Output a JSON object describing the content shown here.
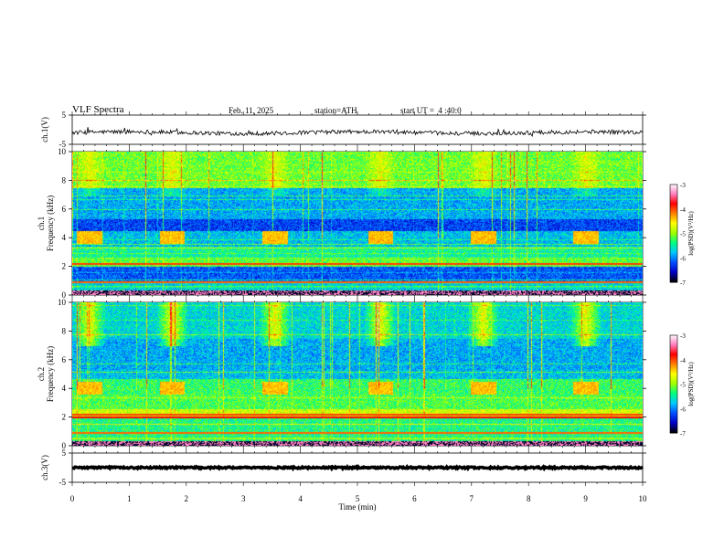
{
  "header": {
    "title": "VLF Spectra",
    "date": "Feb. 11, 2025",
    "station": "station=ATH",
    "start": "start UT =  4 :40:0"
  },
  "colors": {
    "waveform": "#000000",
    "spectrogram_colormap": [
      "#000000",
      "#0000c8",
      "#0050ff",
      "#00c8ff",
      "#00ff80",
      "#a0ff00",
      "#ffff00",
      "#ff8000",
      "#ff0000",
      "#ff80c0",
      "#ffffff"
    ]
  },
  "chart_data": [
    {
      "type": "line",
      "name": "ch1-waveform",
      "ylabel": "ch.1(V)",
      "ylim": [
        -5,
        5
      ],
      "yticks": [
        "5",
        "-5"
      ],
      "xlim": [
        0,
        10
      ],
      "baseline": -1
    },
    {
      "type": "heatmap",
      "name": "ch1-spectrogram",
      "ylabel": "ch.1\nFrequency (kHz)",
      "ylabel_line1": "ch.1",
      "ylabel_line2": "Frequency (kHz)",
      "ylim": [
        0,
        10
      ],
      "yticks": [
        "0",
        "2",
        "4",
        "6",
        "8",
        "10"
      ],
      "xlim": [
        0,
        10
      ],
      "colorbar": {
        "label": "log(PSD)(V²/Hz)",
        "range": [
          -7,
          -3
        ],
        "ticks": [
          "-3",
          "-4",
          "-5",
          "-6",
          "-7"
        ]
      }
    },
    {
      "type": "heatmap",
      "name": "ch2-spectrogram",
      "ylabel_line1": "ch.2",
      "ylabel_line2": "Frequency (kHz)",
      "ylim": [
        0,
        10
      ],
      "yticks": [
        "0",
        "2",
        "4",
        "6",
        "8",
        "10"
      ],
      "xlim": [
        0,
        10
      ],
      "colorbar": {
        "label": "log(PSD)(V²/Hz)",
        "range": [
          -7,
          -3
        ],
        "ticks": [
          "-3",
          "-4",
          "-5",
          "-6",
          "-7"
        ]
      }
    },
    {
      "type": "line",
      "name": "ch3-waveform",
      "ylabel": "ch.3(V)",
      "ylim": [
        -5,
        5
      ],
      "yticks": [
        "5",
        "-5"
      ],
      "xlim": [
        0,
        10
      ],
      "baseline": 0
    }
  ],
  "xaxis": {
    "label": "Time (min)",
    "ticks": [
      "0",
      "1",
      "2",
      "3",
      "4",
      "5",
      "6",
      "7",
      "8",
      "9",
      "10"
    ]
  },
  "events": [
    0.3,
    1.75,
    3.55,
    5.4,
    7.2,
    9.0
  ]
}
